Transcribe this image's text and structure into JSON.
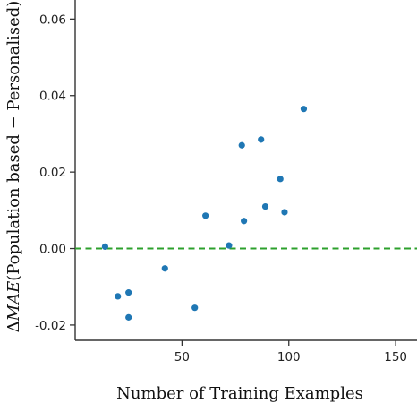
{
  "chart_data": {
    "type": "scatter",
    "title": "",
    "xlabel": "Number of Training Examples",
    "ylabel": "ΔMAE(Population based − Personalised)",
    "ylabel_parts": {
      "delta": "Δ",
      "mae": "MAE",
      "rest": "(Population based − Personalised)"
    },
    "xlim": [
      0,
      160
    ],
    "ylim": [
      -0.024,
      0.065
    ],
    "x_ticks": [
      50,
      100,
      150
    ],
    "x_tick_labels": [
      "50",
      "100",
      "150"
    ],
    "y_ticks": [
      -0.02,
      0.0,
      0.02,
      0.04,
      0.06
    ],
    "y_tick_labels": [
      "-0.02",
      "0.00",
      "0.02",
      "0.04",
      "0.06"
    ],
    "grid": false,
    "point_color": "#1f77b4",
    "reference_line": {
      "y": 0.0,
      "color": "#2ca02c",
      "style": "dashed"
    },
    "series": [
      {
        "x": [
          14,
          20,
          25,
          25,
          42,
          56,
          61,
          72,
          78,
          79,
          87,
          89,
          96,
          98,
          107
        ],
        "y": [
          0.0005,
          -0.0125,
          -0.0115,
          -0.018,
          -0.0052,
          -0.0155,
          0.0086,
          0.0008,
          0.027,
          0.0072,
          0.0285,
          0.011,
          0.0182,
          0.0095,
          0.0365
        ]
      }
    ]
  }
}
